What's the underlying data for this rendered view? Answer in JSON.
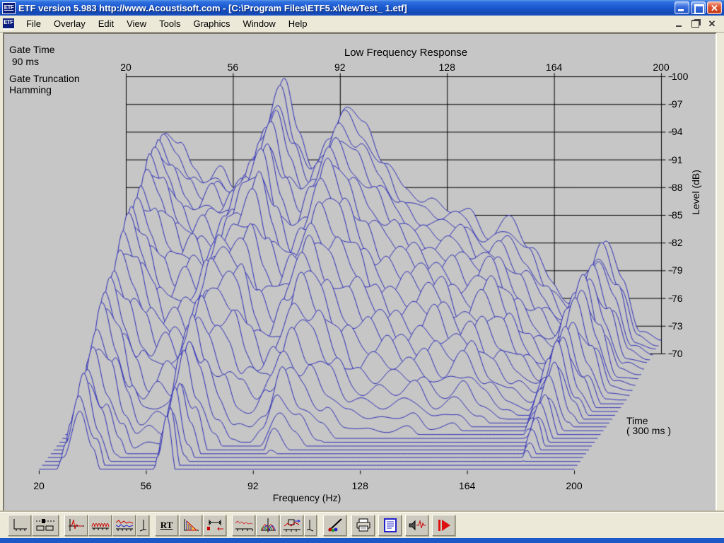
{
  "window": {
    "title": "ETF version 5.983 http://www.Acoustisoft.com - [C:\\Program Files\\ETF5.x\\NewTest_ 1.etf]",
    "icon_text": "ETF"
  },
  "menu": {
    "items": [
      "File",
      "Overlay",
      "Edit",
      "View",
      "Tools",
      "Graphics",
      "Window",
      "Help"
    ]
  },
  "annotations": {
    "gate_time_label": "Gate Time",
    "gate_time_value": " 90 ms",
    "gate_trunc_label": "Gate Truncation",
    "gate_trunc_value": "Hamming",
    "time_label": "Time",
    "time_value": "( 300 ms )"
  },
  "chart_data": {
    "type": "waterfall",
    "title": "Low Frequency Response",
    "xlabel": "Frequency (Hz)",
    "ylabel": "Level (dB)",
    "freq_range": [
      20,
      200
    ],
    "level_range": [
      70,
      100
    ],
    "freq_ticks": [
      20,
      56,
      92,
      128,
      164,
      200
    ],
    "level_ticks": [
      100,
      97,
      94,
      91,
      88,
      85,
      82,
      79,
      76,
      73,
      70
    ],
    "time_span_ms": 300,
    "num_traces": 31,
    "grid": true,
    "trace_color": "#2b2bb8",
    "floor_db": 70,
    "control_freqs": [
      20,
      24,
      28,
      33,
      38,
      43,
      47,
      52,
      56,
      60,
      63,
      67,
      73,
      78,
      83,
      88,
      94,
      100,
      107,
      114,
      121,
      128,
      135,
      142,
      149,
      156,
      163,
      170,
      176,
      181,
      187,
      193,
      200
    ],
    "base_levels_db": [
      70,
      71,
      86,
      94.5,
      92.5,
      90,
      88.5,
      90,
      88.5,
      89.5,
      91,
      94.5,
      99.5,
      94,
      90.5,
      93,
      97,
      94.5,
      91,
      88,
      86.5,
      85.5,
      85.5,
      83,
      84.5,
      81.5,
      78,
      75.5,
      79,
      82,
      78,
      72.5,
      71.5
    ],
    "decay_db_per_trace": [
      0,
      0.1,
      0.5,
      0.62,
      0.7,
      0.78,
      0.82,
      0.85,
      0.8,
      0.62,
      0.55,
      0.9,
      1.35,
      1.2,
      1.05,
      1.1,
      1.12,
      1.1,
      1.05,
      1.0,
      0.92,
      0.88,
      0.85,
      0.8,
      0.85,
      0.78,
      0.62,
      0.5,
      0.48,
      0.45,
      0.5,
      0.3,
      0.2
    ],
    "ripple_db": 1.2
  },
  "toolbar": {
    "buttons": [
      {
        "id": "waterfall-view",
        "icon": "waterfall-axes"
      },
      {
        "id": "display-settings",
        "icon": "display-settings"
      },
      {
        "id": "impulse-response",
        "icon": "impulse"
      },
      {
        "id": "frequency-response",
        "icon": "sine-train"
      },
      {
        "id": "overlay-curves",
        "icon": "overlay-curves"
      },
      {
        "id": "rotate-left",
        "icon": "corner-left"
      },
      {
        "id": "rt60",
        "icon": "rt-text",
        "label": "RT"
      },
      {
        "id": "energy-decay",
        "icon": "decay-triangle"
      },
      {
        "id": "gate-settings",
        "icon": "gate-markers"
      },
      {
        "id": "smoothed-response",
        "icon": "smoothed-curve"
      },
      {
        "id": "phase-response",
        "icon": "phase-lobes"
      },
      {
        "id": "windowed-response",
        "icon": "windowed-chart"
      },
      {
        "id": "rotate-right",
        "icon": "corner-right"
      },
      {
        "id": "graph-colors",
        "icon": "color-brush"
      },
      {
        "id": "print",
        "icon": "printer"
      },
      {
        "id": "notes",
        "icon": "notes"
      },
      {
        "id": "play-signal",
        "icon": "speaker-impulse"
      },
      {
        "id": "measure",
        "icon": "play-arrow"
      }
    ]
  },
  "colors": {
    "titlebar_blue": "#1c5ad0",
    "window_face": "#ece9d8",
    "plot_background": "#c6c6c6",
    "trace_blue": "#2b2bb8",
    "grid_black": "#000000",
    "bottom_border_blue": "#1c58c8"
  }
}
